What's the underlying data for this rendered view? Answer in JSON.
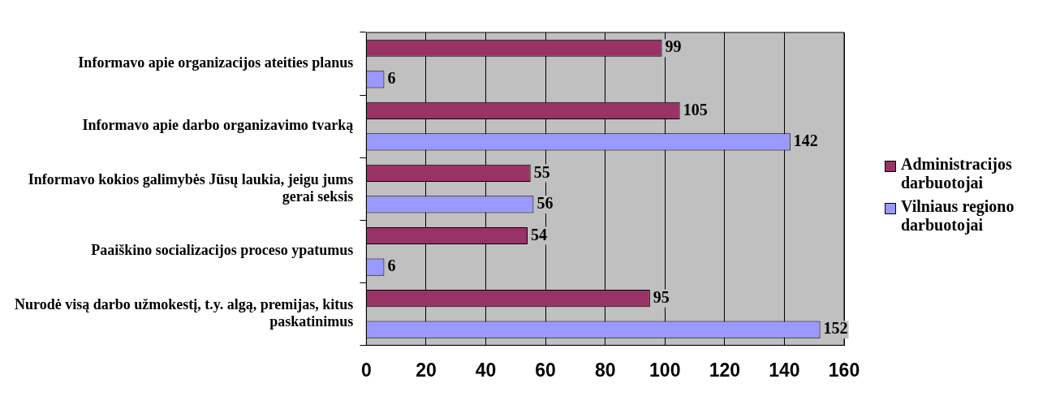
{
  "chart_data": {
    "type": "bar",
    "orientation": "horizontal",
    "categories": [
      "Informavo apie organizacijos ateities planus",
      "Informavo apie darbo organizavimo tvarką",
      "Informavo kokios galimybės Jūsų laukia, jeigu jums gerai seksis",
      "Paaiškino socializacijos proceso ypatumus",
      "Nurodė visą darbo užmokestį, t.y. algą, premijas, kitus paskatinimus"
    ],
    "series": [
      {
        "name": "Administracijos darbuotojai",
        "color": "#993366",
        "values": [
          99,
          105,
          55,
          54,
          95
        ]
      },
      {
        "name": "Vilniaus regiono darbuotojai",
        "color": "#9999ff",
        "values": [
          6,
          142,
          56,
          6,
          152
        ]
      }
    ],
    "xlim": [
      0,
      160
    ],
    "xticks": [
      0,
      20,
      40,
      60,
      80,
      100,
      120,
      140,
      160
    ],
    "grid": "x",
    "legend": "right",
    "data_labels": true
  }
}
